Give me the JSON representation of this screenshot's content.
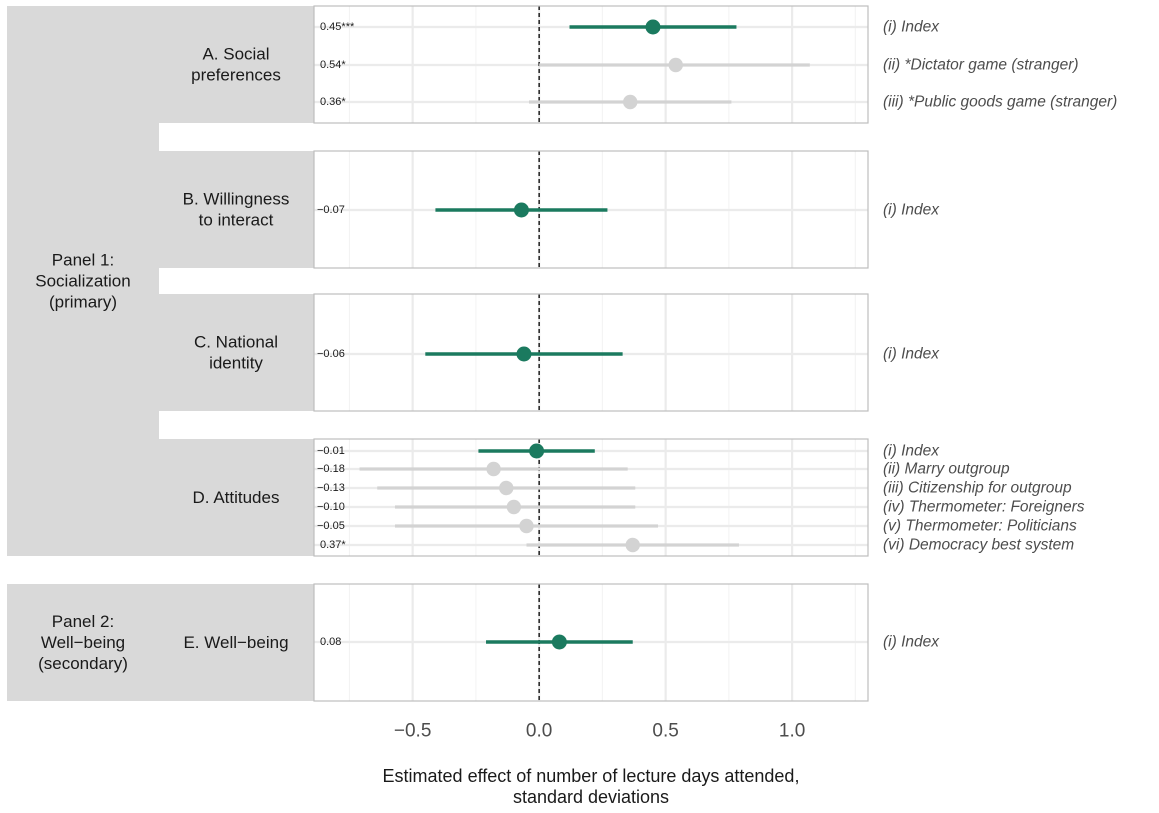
{
  "chart_data": {
    "type": "forest",
    "xlabel": [
      "Estimated effect of number of lecture days attended,",
      "standard deviations"
    ],
    "xlim": [
      -0.89,
      1.3
    ],
    "x_ticks": [
      -0.5,
      0.0,
      0.5,
      1.0
    ],
    "x_tick_labels": [
      "−0.5",
      "0.0",
      "0.5",
      "1.0"
    ],
    "reference_line": 0,
    "grid": true,
    "colors": {
      "index": "#1b7a5f",
      "component": "#d3d3d3",
      "strip": "#d9d9d9",
      "reference": "#000000"
    },
    "panels": [
      {
        "label": [
          "Panel 1:",
          "Socialization",
          "(primary)"
        ]
      },
      {
        "label": [
          "Panel 2:",
          "Well−being",
          "(secondary)"
        ]
      }
    ],
    "groups": [
      {
        "panel": 0,
        "label": [
          "A. Social",
          "preferences"
        ],
        "rows": [
          {
            "outcome": "(i) Index",
            "est": 0.45,
            "lo": 0.12,
            "hi": 0.78,
            "est_label": "0.45***",
            "index": true
          },
          {
            "outcome": "(ii) *Dictator game (stranger)",
            "est": 0.54,
            "lo": 0.0,
            "hi": 1.07,
            "est_label": "0.54*",
            "index": false
          },
          {
            "outcome": "(iii) *Public goods game (stranger)",
            "est": 0.36,
            "lo": -0.04,
            "hi": 0.76,
            "est_label": "0.36*",
            "index": false
          }
        ]
      },
      {
        "panel": 0,
        "label": [
          "B. Willingness",
          "to interact"
        ],
        "rows": [
          {
            "outcome": "(i) Index",
            "est": -0.07,
            "lo": -0.41,
            "hi": 0.27,
            "est_label": "−0.07",
            "index": true
          }
        ]
      },
      {
        "panel": 0,
        "label": [
          "C. National",
          "identity"
        ],
        "rows": [
          {
            "outcome": "(i) Index",
            "est": -0.06,
            "lo": -0.45,
            "hi": 0.33,
            "est_label": "−0.06",
            "index": true
          }
        ]
      },
      {
        "panel": 0,
        "label": [
          "D. Attitudes"
        ],
        "rows": [
          {
            "outcome": "(i) Index",
            "est": -0.01,
            "lo": -0.24,
            "hi": 0.22,
            "est_label": "−0.01",
            "index": true
          },
          {
            "outcome": "(ii) Marry outgroup",
            "est": -0.18,
            "lo": -0.71,
            "hi": 0.35,
            "est_label": "−0.18",
            "index": false
          },
          {
            "outcome": "(iii) Citizenship for outgroup",
            "est": -0.13,
            "lo": -0.64,
            "hi": 0.38,
            "est_label": "−0.13",
            "index": false
          },
          {
            "outcome": "(iv) Thermometer: Foreigners",
            "est": -0.1,
            "lo": -0.57,
            "hi": 0.38,
            "est_label": "−0.10",
            "index": false
          },
          {
            "outcome": "(v) Thermometer: Politicians",
            "est": -0.05,
            "lo": -0.57,
            "hi": 0.47,
            "est_label": "−0.05",
            "index": false
          },
          {
            "outcome": "(vi) Democracy best system",
            "est": 0.37,
            "lo": -0.05,
            "hi": 0.79,
            "est_label": "0.37*",
            "index": false
          }
        ]
      },
      {
        "panel": 1,
        "label": [
          "E. Well−being"
        ],
        "rows": [
          {
            "outcome": "(i) Index",
            "est": 0.08,
            "lo": -0.21,
            "hi": 0.37,
            "est_label": "0.08",
            "index": true
          }
        ]
      }
    ]
  }
}
